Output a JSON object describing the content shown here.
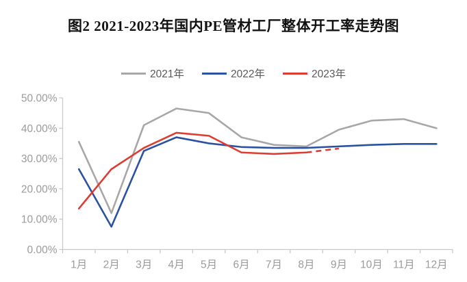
{
  "title": {
    "text": "图2 2021-2023年国内PE管材工厂整体开工率走势图"
  },
  "legend": [
    {
      "label": "2021年",
      "color": "#a7a7a7"
    },
    {
      "label": "2022年",
      "color": "#2a52a0"
    },
    {
      "label": "2023年",
      "color": "#de3b31"
    }
  ],
  "chart_data": {
    "type": "line",
    "title": "图2 2021-2023年国内PE管材工厂整体开工率走势图",
    "categories": [
      "1月",
      "2月",
      "3月",
      "4月",
      "5月",
      "6月",
      "7月",
      "8月",
      "9月",
      "10月",
      "11月",
      "12月"
    ],
    "series": [
      {
        "name": "2021年",
        "color": "#a7a7a7",
        "style": "solid",
        "values": [
          35.5,
          12,
          41,
          46.5,
          45,
          37,
          34.5,
          34,
          39.5,
          42.5,
          43,
          40
        ]
      },
      {
        "name": "2022年",
        "color": "#2a52a0",
        "style": "solid",
        "values": [
          26.5,
          7.5,
          32.5,
          37,
          35,
          33.8,
          33.5,
          33.5,
          34,
          34.5,
          34.8,
          34.8
        ]
      },
      {
        "name": "2023年",
        "color": "#de3b31",
        "style": "solid_then_dashed",
        "dashed_from_index": 7,
        "values": [
          13.5,
          26.5,
          33.5,
          38.5,
          37.5,
          32,
          31.5,
          32,
          33.3
        ]
      }
    ],
    "y_axis": {
      "min": 0,
      "max": 50,
      "step": 10,
      "tick_labels": [
        "0.00%",
        "10.00%",
        "20.00%",
        "30.00%",
        "40.00%",
        "50.00%"
      ],
      "unit": "percent"
    },
    "x_axis": {
      "label_suffix": "月"
    },
    "ylim": [
      0,
      50
    ],
    "grid": false,
    "legend_position": "top",
    "axis_color": "#c9c9c9",
    "tick_text_color": "#9b9b9b"
  }
}
